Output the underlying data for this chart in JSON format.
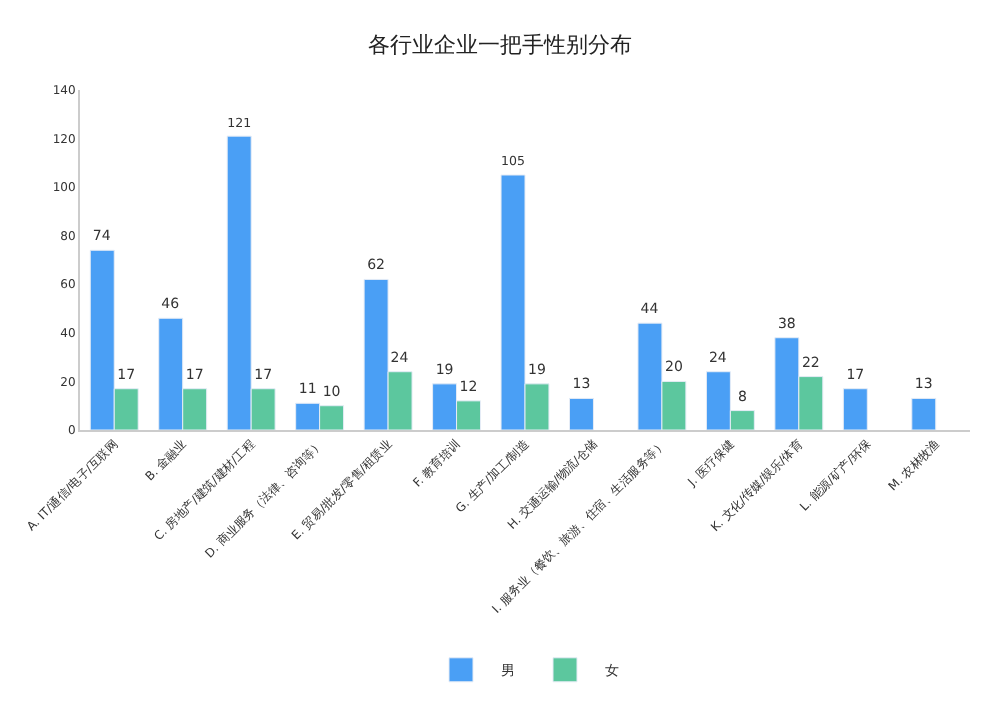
{
  "chart_data": {
    "type": "bar",
    "title": "各行业企业一把手性别分布",
    "categories": [
      "A. IT/通信/电子/互联网",
      "B. 金融业",
      "C. 房地产/建筑/建材/工程",
      "D. 商业服务（法律、咨询等）",
      "E. 贸易/批发/零售/租赁业",
      "F. 教育培训",
      "G. 生产/加工/制造",
      "H. 交通运输/物流/仓储",
      "I. 服务业（餐饮、旅游、住宿、生活服务等）",
      "J. 医疗保健",
      "K. 文化/传媒/娱乐/体育",
      "L. 能源/矿产/环保",
      "M. 农林牧渔"
    ],
    "series": [
      {
        "name": "男",
        "color": "#4a9ff5",
        "values": [
          74,
          46,
          121,
          11,
          62,
          19,
          105,
          13,
          44,
          24,
          38,
          17,
          13
        ]
      },
      {
        "name": "女",
        "color": "#5cc79e",
        "values": [
          17,
          17,
          17,
          10,
          24,
          12,
          19,
          null,
          20,
          8,
          22,
          null,
          null
        ]
      }
    ],
    "ylim": [
      0,
      140
    ],
    "yticks": [
      0,
      20,
      40,
      60,
      80,
      100,
      120,
      140
    ],
    "data_labels": true,
    "legend": "bottom",
    "grid": false
  }
}
